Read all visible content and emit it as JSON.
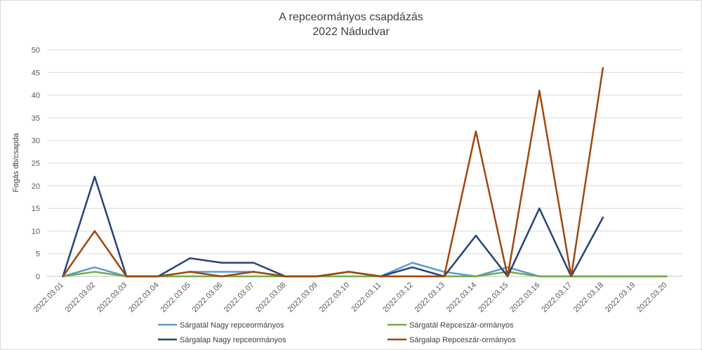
{
  "chart_data": {
    "type": "line",
    "title": "A repceormányos csapdázás",
    "subtitle": "2022 Nádudvar",
    "xlabel": "",
    "ylabel": "Fogás db/csapda",
    "ylim": [
      0,
      50
    ],
    "yticks": [
      0,
      5,
      10,
      15,
      20,
      25,
      30,
      35,
      40,
      45,
      50
    ],
    "grid": true,
    "legend_position": "bottom",
    "categories": [
      "2022.03.01",
      "2022.03.02",
      "2022.03.03",
      "2022.03.04",
      "2022.03.05",
      "2022.03.06",
      "2022.03.07",
      "2022.03.08",
      "2022.03.09",
      "2022.03.10",
      "2022.03.11",
      "2022.03.12",
      "2022.03.13",
      "2022.03.14",
      "2022.03.15",
      "2022.03.16",
      "2022.03.17",
      "2022.03.18",
      "2022.03.19",
      "2022.03.20"
    ],
    "series": [
      {
        "name": "Sárgatál Nagy repceormányos",
        "color": "#5b9bd5",
        "values": [
          0,
          2,
          0,
          0,
          1,
          1,
          1,
          0,
          0,
          1,
          0,
          3,
          1,
          0,
          2,
          0,
          0,
          0,
          0,
          0
        ]
      },
      {
        "name": "Sárgatál Repceszár-ormányos",
        "color": "#70ad47",
        "values": [
          0,
          1,
          0,
          0,
          0,
          0,
          0,
          0,
          0,
          0,
          0,
          0,
          0,
          0,
          1,
          0,
          0,
          0,
          0,
          0
        ]
      },
      {
        "name": "Sárgalap Nagy repceormányos",
        "color": "#264478",
        "values": [
          0,
          22,
          0,
          0,
          4,
          3,
          3,
          0,
          0,
          1,
          0,
          2,
          0,
          9,
          0,
          15,
          0,
          13,
          null,
          null
        ]
      },
      {
        "name": "Sárgalap Repceszár-ormányos",
        "color": "#9e480e",
        "values": [
          0,
          10,
          0,
          0,
          1,
          0,
          1,
          0,
          0,
          1,
          0,
          0,
          0,
          32,
          0,
          41,
          0,
          46,
          null,
          null
        ]
      }
    ]
  }
}
